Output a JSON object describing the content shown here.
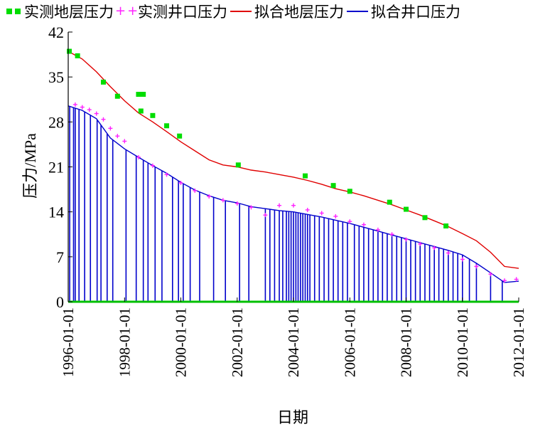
{
  "chart_data": {
    "type": "line",
    "title": "",
    "xlabel": "日期",
    "ylabel": "压力/MPa",
    "xlim": [
      "1996-01-01",
      "2012-01-01"
    ],
    "ylim": [
      0,
      42
    ],
    "y_ticks": [
      0,
      7,
      14,
      21,
      28,
      35,
      42
    ],
    "x_ticks": [
      "1996-01-01",
      "1998-01-01",
      "2000-01-01",
      "2002-01-01",
      "2004-01-01",
      "2006-01-01",
      "2008-01-01",
      "2010-01-01",
      "2012-01-01"
    ],
    "grid": false,
    "legend_position": "top",
    "series": [
      {
        "name": "实测地层压力",
        "marker": "square",
        "color": "#00dd00",
        "points": [
          [
            "1996-01-15",
            39.0
          ],
          [
            "1996-05-01",
            38.3
          ],
          [
            "1997-04-01",
            34.2
          ],
          [
            "1997-10-01",
            32.0
          ],
          [
            "1998-07-01",
            32.3
          ],
          [
            "1998-09-01",
            32.3
          ],
          [
            "1998-08-01",
            29.7
          ],
          [
            "1999-01-01",
            29.0
          ],
          [
            "1999-07-01",
            27.4
          ],
          [
            "1999-12-15",
            25.8
          ],
          [
            "2002-01-15",
            21.3
          ],
          [
            "2004-06-01",
            19.6
          ],
          [
            "2005-06-01",
            18.1
          ],
          [
            "2006-01-01",
            17.2
          ],
          [
            "2007-06-01",
            15.5
          ],
          [
            "2008-01-01",
            14.4
          ],
          [
            "2008-09-01",
            13.1
          ],
          [
            "2009-06-01",
            11.8
          ]
        ]
      },
      {
        "name": "实测井口压力",
        "marker": "plus",
        "color": "#ff22ff",
        "points": [
          [
            "1996-04-01",
            30.7
          ],
          [
            "1996-07-01",
            30.3
          ],
          [
            "1996-10-01",
            29.9
          ],
          [
            "1997-01-01",
            29.3
          ],
          [
            "1997-04-01",
            28.4
          ],
          [
            "1997-07-01",
            27.0
          ],
          [
            "1997-10-01",
            25.8
          ],
          [
            "1998-01-01",
            25.0
          ],
          [
            "1998-07-01",
            22.5
          ],
          [
            "1999-01-01",
            21.2
          ],
          [
            "1999-07-01",
            19.8
          ],
          [
            "2000-01-01",
            18.5
          ],
          [
            "2000-07-01",
            17.3
          ],
          [
            "2001-01-01",
            16.4
          ],
          [
            "2001-07-01",
            15.8
          ],
          [
            "2002-01-01",
            15.3
          ],
          [
            "2002-07-01",
            14.7
          ],
          [
            "2003-01-01",
            13.5
          ],
          [
            "2003-07-01",
            15.0
          ],
          [
            "2004-01-01",
            15.0
          ],
          [
            "2004-07-01",
            14.3
          ],
          [
            "2005-01-01",
            13.8
          ],
          [
            "2005-07-01",
            13.3
          ],
          [
            "2006-01-01",
            12.5
          ],
          [
            "2006-07-01",
            12.0
          ],
          [
            "2007-01-01",
            11.2
          ],
          [
            "2007-07-01",
            10.5
          ],
          [
            "2008-01-01",
            9.7
          ],
          [
            "2008-07-01",
            9.0
          ],
          [
            "2009-01-01",
            8.4
          ],
          [
            "2009-07-01",
            7.6
          ],
          [
            "2010-01-01",
            6.6
          ],
          [
            "2010-07-01",
            5.5
          ],
          [
            "2011-01-01",
            4.3
          ],
          [
            "2011-07-01",
            3.3
          ],
          [
            "2011-12-01",
            3.5
          ]
        ]
      },
      {
        "name": "拟合地层压力",
        "color": "#e00000",
        "points": [
          [
            "1996-01-01",
            39.0
          ],
          [
            "1996-07-01",
            37.8
          ],
          [
            "1997-01-01",
            35.8
          ],
          [
            "1997-07-01",
            33.5
          ],
          [
            "1998-01-01",
            31.3
          ],
          [
            "1998-07-01",
            29.4
          ],
          [
            "1999-01-01",
            28.0
          ],
          [
            "1999-07-01",
            26.5
          ],
          [
            "2000-01-01",
            24.9
          ],
          [
            "2000-07-01",
            23.5
          ],
          [
            "2001-01-01",
            22.1
          ],
          [
            "2001-07-01",
            21.3
          ],
          [
            "2002-01-01",
            21.0
          ],
          [
            "2002-07-01",
            20.5
          ],
          [
            "2003-01-01",
            20.2
          ],
          [
            "2003-07-01",
            19.8
          ],
          [
            "2004-01-01",
            19.4
          ],
          [
            "2004-07-01",
            18.9
          ],
          [
            "2005-01-01",
            18.3
          ],
          [
            "2005-07-01",
            17.6
          ],
          [
            "2006-01-01",
            17.1
          ],
          [
            "2006-07-01",
            16.5
          ],
          [
            "2007-01-01",
            15.8
          ],
          [
            "2007-07-01",
            15.1
          ],
          [
            "2008-01-01",
            14.3
          ],
          [
            "2008-07-01",
            13.5
          ],
          [
            "2009-01-01",
            12.6
          ],
          [
            "2009-07-01",
            11.7
          ],
          [
            "2010-01-01",
            10.6
          ],
          [
            "2010-07-01",
            9.5
          ],
          [
            "2011-01-01",
            7.7
          ],
          [
            "2011-07-01",
            5.5
          ],
          [
            "2012-01-01",
            5.2
          ]
        ]
      },
      {
        "name": "拟合井口压力",
        "color": "#0000cc",
        "points": [
          [
            "1996-01-01",
            30.5
          ],
          [
            "1996-07-01",
            29.8
          ],
          [
            "1997-01-01",
            28.5
          ],
          [
            "1997-07-01",
            25.5
          ],
          [
            "1998-01-01",
            23.8
          ],
          [
            "1998-07-01",
            22.5
          ],
          [
            "1999-01-01",
            21.2
          ],
          [
            "1999-07-01",
            20.0
          ],
          [
            "2000-01-01",
            18.6
          ],
          [
            "2000-07-01",
            17.4
          ],
          [
            "2001-01-01",
            16.5
          ],
          [
            "2001-07-01",
            15.8
          ],
          [
            "2002-01-01",
            15.4
          ],
          [
            "2002-07-01",
            14.8
          ],
          [
            "2003-01-01",
            14.5
          ],
          [
            "2003-07-01",
            14.2
          ],
          [
            "2004-01-01",
            14.0
          ],
          [
            "2004-07-01",
            13.6
          ],
          [
            "2005-01-01",
            13.2
          ],
          [
            "2005-07-01",
            12.7
          ],
          [
            "2006-01-01",
            12.2
          ],
          [
            "2006-07-01",
            11.6
          ],
          [
            "2007-01-01",
            11.0
          ],
          [
            "2007-07-01",
            10.4
          ],
          [
            "2008-01-01",
            9.8
          ],
          [
            "2008-07-01",
            9.2
          ],
          [
            "2009-01-01",
            8.6
          ],
          [
            "2009-07-01",
            8.0
          ],
          [
            "2010-01-01",
            7.3
          ],
          [
            "2010-07-01",
            6.0
          ],
          [
            "2011-01-01",
            4.5
          ],
          [
            "2011-07-01",
            3.0
          ],
          [
            "2012-01-01",
            3.2
          ]
        ],
        "shut_in_drops_to_zero": [
          "1996-01-20",
          "1996-03-10",
          "1996-04-01",
          "1996-05-20",
          "1996-08-01",
          "1996-10-15",
          "1997-01-10",
          "1997-03-01",
          "1997-05-20",
          "1997-08-01",
          "1998-01-20",
          "1998-06-01",
          "1998-09-01",
          "1998-11-01",
          "1999-02-01",
          "1999-05-01",
          "1999-09-15",
          "1999-12-01",
          "2000-02-01",
          "2000-05-01",
          "2000-09-01",
          "2001-03-01",
          "2001-08-01",
          "2002-02-01",
          "2002-06-01",
          "2003-01-01",
          "2003-03-01",
          "2003-05-01",
          "2003-07-01",
          "2003-08-15",
          "2003-10-01",
          "2003-11-01",
          "2003-12-01",
          "2004-01-01",
          "2004-02-01",
          "2004-03-01",
          "2004-04-01",
          "2004-05-01",
          "2004-06-01",
          "2004-07-01",
          "2004-08-01",
          "2004-10-01",
          "2004-12-01",
          "2005-02-01",
          "2005-04-01",
          "2005-06-01",
          "2005-08-01",
          "2005-10-01",
          "2005-12-01",
          "2006-03-01",
          "2006-05-01",
          "2006-07-01",
          "2006-09-01",
          "2006-11-01",
          "2007-01-01",
          "2007-03-01",
          "2007-05-01",
          "2007-07-01",
          "2007-09-01",
          "2007-11-01",
          "2008-01-01",
          "2008-03-01",
          "2008-05-01",
          "2008-07-01",
          "2008-09-01",
          "2008-11-01",
          "2009-01-01",
          "2009-03-01",
          "2009-05-01",
          "2009-07-01",
          "2009-09-01",
          "2009-11-01",
          "2010-01-01",
          "2010-04-01",
          "2010-07-01",
          "2011-01-01",
          "2011-06-01"
        ]
      }
    ]
  }
}
